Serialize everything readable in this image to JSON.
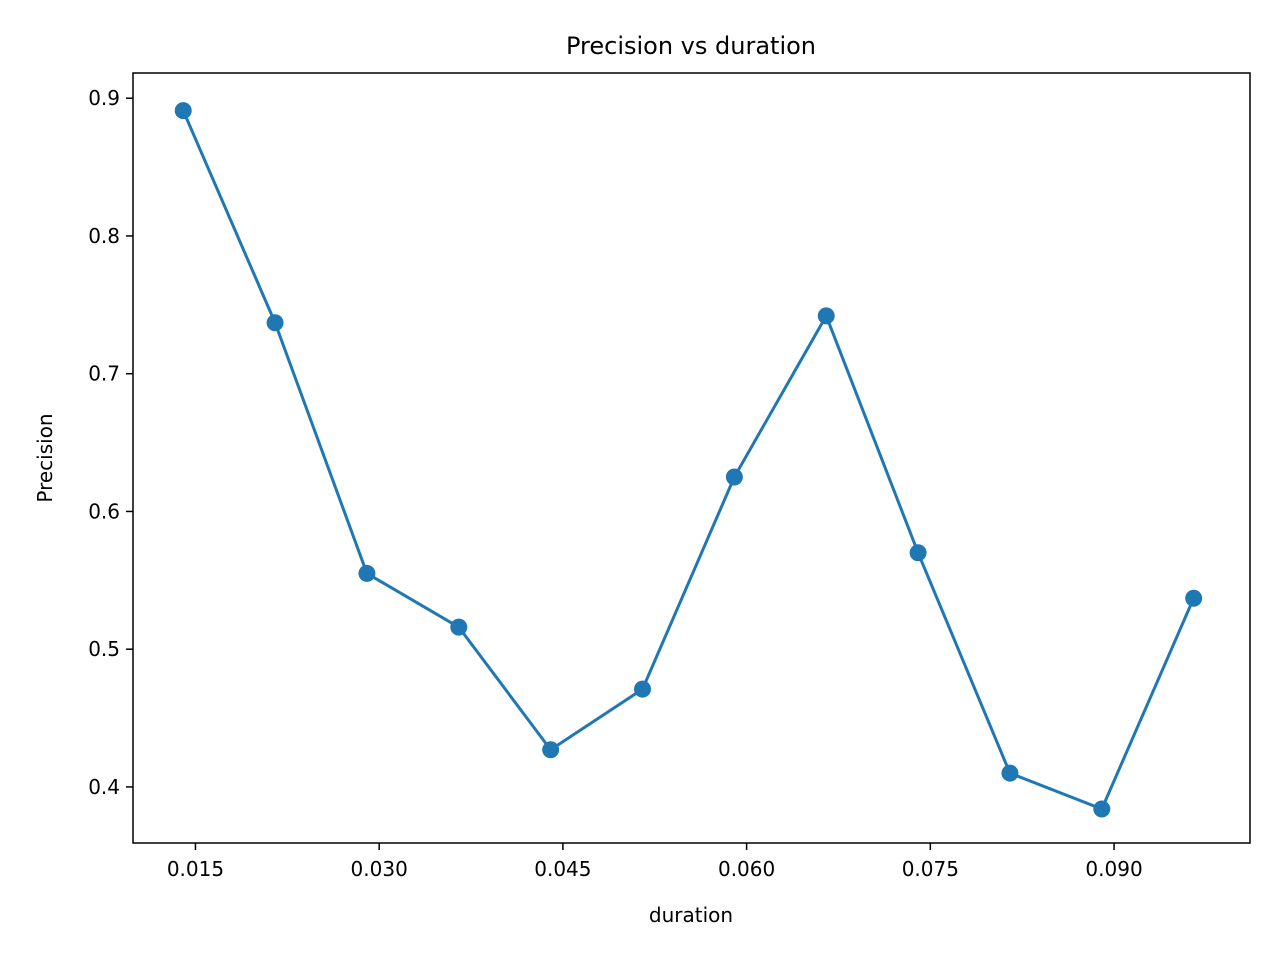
{
  "chart_data": {
    "type": "line",
    "title": "Precision vs duration",
    "xlabel": "duration",
    "ylabel": "Precision",
    "xlim": [
      0.0099,
      0.1011
    ],
    "ylim": [
      0.3593,
      0.9183
    ],
    "xticks": [
      0.015,
      0.03,
      0.045,
      0.06,
      0.075,
      0.09
    ],
    "xtick_labels": [
      "0.015",
      "0.030",
      "0.045",
      "0.060",
      "0.075",
      "0.090"
    ],
    "yticks": [
      0.4,
      0.5,
      0.6,
      0.7,
      0.8,
      0.9
    ],
    "ytick_labels": [
      "0.4",
      "0.5",
      "0.6",
      "0.7",
      "0.8",
      "0.9"
    ],
    "grid": false,
    "series": [
      {
        "color": "#1f77b4",
        "marker": "circle",
        "x": [
          0.014,
          0.0215,
          0.029,
          0.0365,
          0.044,
          0.0515,
          0.059,
          0.0665,
          0.074,
          0.0815,
          0.089,
          0.0965
        ],
        "y": [
          0.891,
          0.737,
          0.555,
          0.516,
          0.427,
          0.471,
          0.625,
          0.742,
          0.57,
          0.41,
          0.384,
          0.537
        ]
      }
    ]
  }
}
